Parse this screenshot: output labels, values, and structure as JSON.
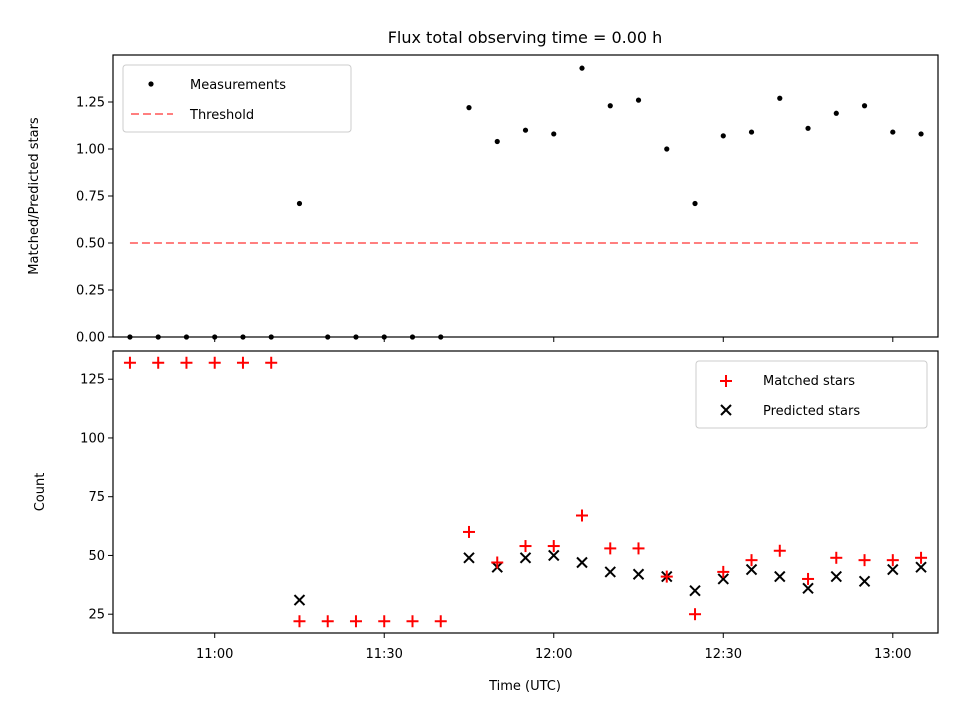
{
  "title": "Flux total observing time = 0.00 h",
  "xlabel": "Time (UTC)",
  "x_ticks": [
    "11:00",
    "11:30",
    "12:00",
    "12:30",
    "13:00"
  ],
  "colors": {
    "measurements": "#000000",
    "threshold": "#ff7f7f",
    "matched": "#ff0000",
    "predicted": "#000000"
  },
  "chart_data": [
    {
      "type": "scatter",
      "ylabel": "Matched/Predicted stars",
      "ylim": [
        0,
        1.5
      ],
      "yticks": [
        "0.00",
        "0.25",
        "0.50",
        "0.75",
        "1.00",
        "1.25"
      ],
      "xlim": [
        "10:42",
        "13:08"
      ],
      "legend": {
        "placement": "top-left",
        "entries": [
          "Measurements",
          "Threshold"
        ]
      },
      "series": [
        {
          "name": "Measurements",
          "x": [
            "10:45",
            "10:50",
            "10:55",
            "11:00",
            "11:05",
            "11:10",
            "11:15",
            "11:20",
            "11:25",
            "11:30",
            "11:35",
            "11:40",
            "11:45",
            "11:50",
            "11:55",
            "12:00",
            "12:05",
            "12:10",
            "12:15",
            "12:20",
            "12:25",
            "12:30",
            "12:35",
            "12:40",
            "12:45",
            "12:50",
            "12:55",
            "13:00",
            "13:05"
          ],
          "values": [
            0,
            0,
            0,
            0,
            0,
            0,
            0.71,
            0,
            0,
            0,
            0,
            0,
            1.22,
            1.04,
            1.1,
            1.08,
            1.43,
            1.23,
            1.26,
            1.0,
            0.71,
            1.07,
            1.09,
            1.27,
            1.11,
            1.19,
            1.23,
            1.09,
            1.08
          ]
        },
        {
          "name": "Threshold",
          "x": [
            "10:45",
            "13:05"
          ],
          "values": [
            0.5,
            0.5
          ]
        }
      ]
    },
    {
      "type": "scatter",
      "ylabel": "Count",
      "ylim": [
        17,
        137
      ],
      "yticks": [
        "25",
        "50",
        "75",
        "100",
        "125"
      ],
      "xlim": [
        "10:42",
        "13:08"
      ],
      "legend": {
        "placement": "top-right",
        "entries": [
          "Matched stars",
          "Predicted stars"
        ]
      },
      "series": [
        {
          "name": "Matched stars",
          "x": [
            "10:45",
            "10:50",
            "10:55",
            "11:00",
            "11:05",
            "11:10",
            "11:15",
            "11:20",
            "11:25",
            "11:30",
            "11:35",
            "11:40",
            "11:45",
            "11:50",
            "11:55",
            "12:00",
            "12:05",
            "12:10",
            "12:15",
            "12:20",
            "12:25",
            "12:30",
            "12:35",
            "12:40",
            "12:45",
            "12:50",
            "12:55",
            "13:00",
            "13:05"
          ],
          "values": [
            132,
            132,
            132,
            132,
            132,
            132,
            22,
            22,
            22,
            22,
            22,
            22,
            60,
            47,
            54,
            54,
            67,
            53,
            53,
            41,
            25,
            43,
            48,
            52,
            40,
            49,
            48,
            48,
            49
          ]
        },
        {
          "name": "Predicted stars",
          "x": [
            "11:15",
            "11:45",
            "11:50",
            "11:55",
            "12:00",
            "12:05",
            "12:10",
            "12:15",
            "12:20",
            "12:25",
            "12:30",
            "12:35",
            "12:40",
            "12:45",
            "12:50",
            "12:55",
            "13:00",
            "13:05"
          ],
          "values": [
            31,
            49,
            45,
            49,
            50,
            47,
            43,
            42,
            41,
            35,
            40,
            44,
            41,
            36,
            41,
            39,
            44,
            45
          ]
        }
      ]
    }
  ]
}
